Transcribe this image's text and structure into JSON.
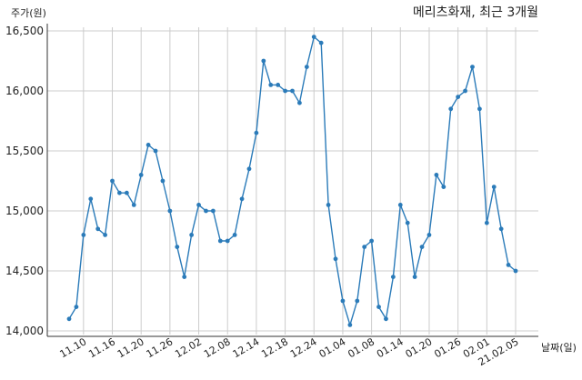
{
  "chart_data": {
    "type": "line",
    "title": "메리츠화재, 최근 3개월",
    "xlabel": "날짜(일)",
    "ylabel": "주가(원)",
    "ylim": [
      14000,
      16500
    ],
    "yticks": [
      14000,
      14500,
      15000,
      15500,
      16000,
      16500
    ],
    "ytick_labels": [
      "14,000",
      "14,500",
      "15,000",
      "15,500",
      "16,000",
      "16,500"
    ],
    "xtick_labels": [
      "11.10",
      "11.16",
      "11.20",
      "11.26",
      "12.02",
      "12.08",
      "12.14",
      "12.18",
      "12.24",
      "01.04",
      "01.08",
      "01.14",
      "01.20",
      "01.26",
      "02.01",
      "21.02.05"
    ],
    "xtick_positions": [
      2,
      6,
      10,
      14,
      18,
      22,
      26,
      30,
      34,
      38,
      42,
      46,
      50,
      54,
      58,
      62
    ],
    "grid": true,
    "series": [
      {
        "color": "#2b7bb9",
        "values": [
          14100,
          14200,
          14800,
          15100,
          14850,
          14800,
          15250,
          15150,
          15150,
          15050,
          15300,
          15550,
          15500,
          15250,
          15000,
          14700,
          14450,
          14800,
          15050,
          15000,
          15000,
          14750,
          14750,
          14800,
          15100,
          15350,
          15650,
          16250,
          16050,
          16050,
          16000,
          16000,
          15900,
          16200,
          16450,
          16400,
          15050,
          14600,
          14250,
          14050,
          14250,
          14700,
          14750,
          14200,
          14100,
          14450,
          15050,
          14900,
          14450,
          14700,
          14800,
          15300,
          15200,
          15850,
          15950,
          16000,
          16200,
          15850,
          14900,
          15200,
          14850,
          14550,
          14500
        ]
      }
    ]
  }
}
